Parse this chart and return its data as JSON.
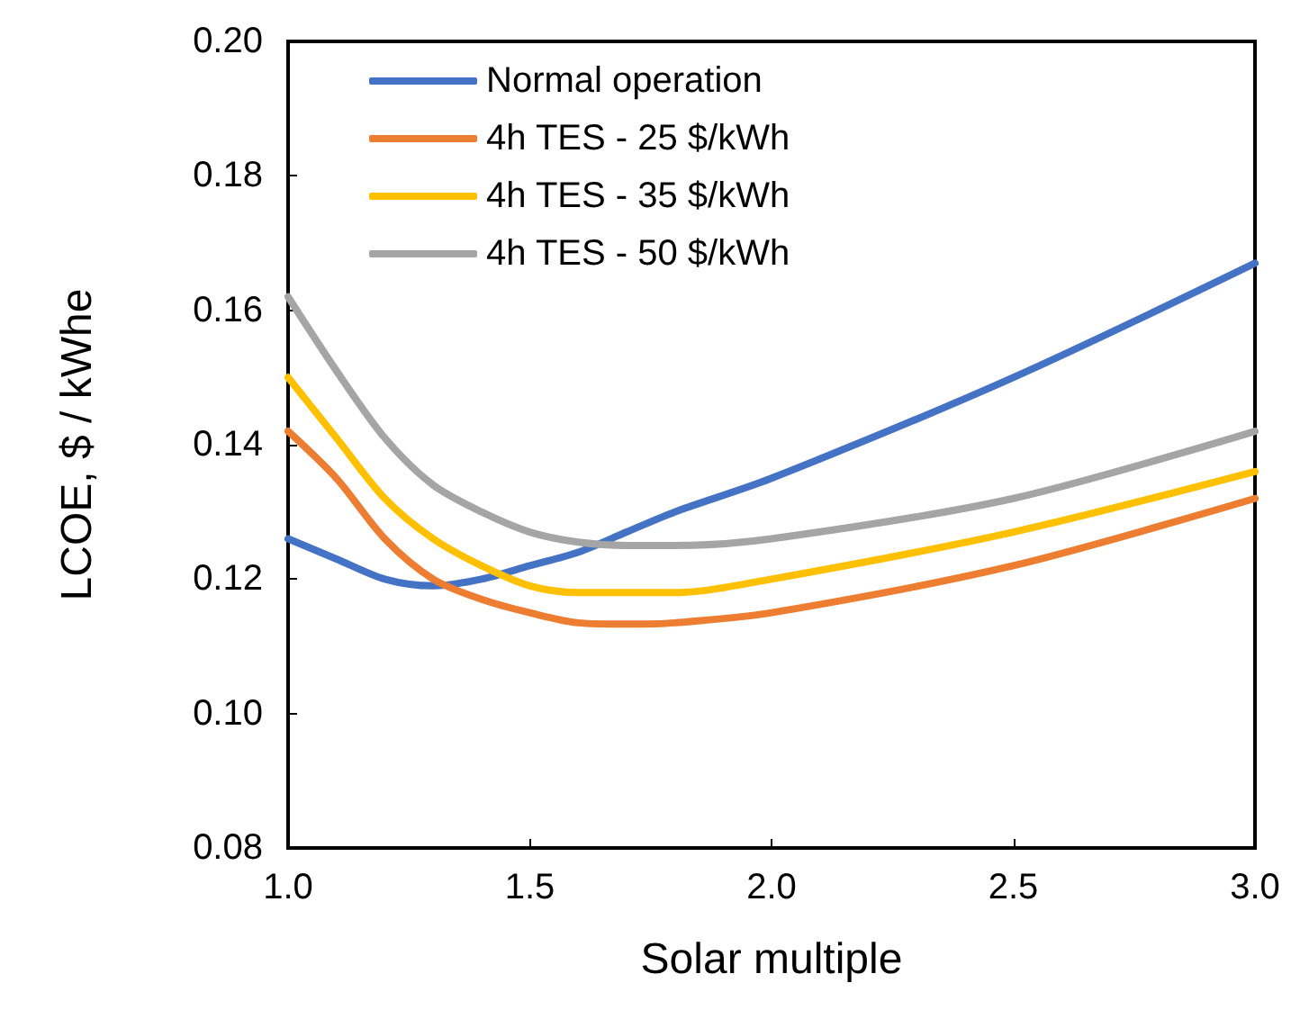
{
  "chart_data": {
    "type": "line",
    "xlabel": "Solar multiple",
    "ylabel": "LCOE, $ / kWhe",
    "xlim": [
      1,
      3
    ],
    "xticks": [
      {
        "value": 1,
        "label": "1.0"
      },
      {
        "value": 1.5,
        "label": "1.5"
      },
      {
        "value": 2,
        "label": "2.0"
      },
      {
        "value": 2.5,
        "label": "2.5"
      },
      {
        "value": 3,
        "label": "3.0"
      }
    ],
    "ylim": [
      0.08,
      0.2
    ],
    "yticks": [
      {
        "value": 0.08,
        "label": "0.08"
      },
      {
        "value": 0.1,
        "label": "0.10"
      },
      {
        "value": 0.12,
        "label": "0.12"
      },
      {
        "value": 0.14,
        "label": "0.14"
      },
      {
        "value": 0.16,
        "label": "0.16"
      },
      {
        "value": 0.18,
        "label": "0.18"
      },
      {
        "value": 0.2,
        "label": "0.20"
      }
    ],
    "x": [
      1.0,
      1.1,
      1.2,
      1.3,
      1.4,
      1.5,
      1.6,
      1.7,
      1.8,
      2.0,
      2.5,
      3.0
    ],
    "series": [
      {
        "name": "Normal operation",
        "color": "#4472c4",
        "values": [
          0.126,
          0.123,
          0.12,
          0.119,
          0.12,
          0.122,
          0.124,
          0.127,
          0.13,
          0.135,
          0.15,
          0.167
        ]
      },
      {
        "name": "4h TES - 25 $/kWh",
        "color": "#ed7d31",
        "values": [
          0.142,
          0.135,
          0.126,
          0.12,
          0.117,
          0.115,
          0.1135,
          0.1133,
          0.1135,
          0.115,
          0.122,
          0.132
        ]
      },
      {
        "name": "4h TES - 35 $/kWh",
        "color": "#ffc000",
        "values": [
          0.15,
          0.141,
          0.132,
          0.126,
          0.122,
          0.119,
          0.118,
          0.118,
          0.118,
          0.12,
          0.127,
          0.136
        ]
      },
      {
        "name": "4h TES - 50 $/kWh",
        "color": "#a5a5a5",
        "values": [
          0.162,
          0.151,
          0.141,
          0.134,
          0.13,
          0.127,
          0.1255,
          0.125,
          0.125,
          0.126,
          0.132,
          0.142
        ]
      }
    ],
    "legend": "top left",
    "grid": false,
    "marker": "none",
    "line_style": "solid"
  }
}
